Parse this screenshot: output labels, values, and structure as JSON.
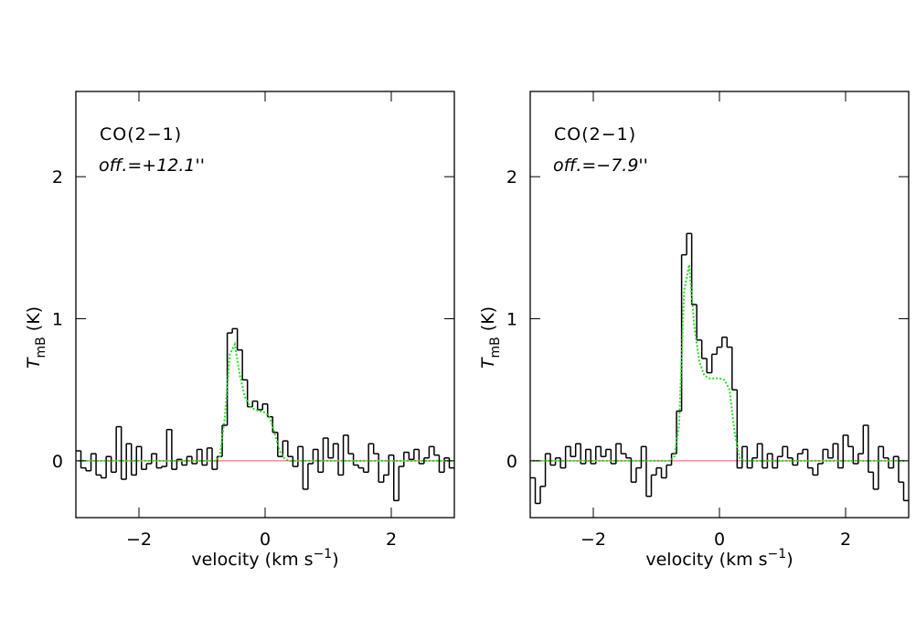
{
  "chart_data": [
    {
      "type": "step",
      "annotations": [
        "CO(2−1)",
        "off.=+12.1''"
      ],
      "xlabel": {
        "text": "velocity (km s",
        "sup": "−1",
        "close": ")"
      },
      "ylabel": {
        "symbol": "T",
        "sub": "mB",
        "unit": "(K)"
      },
      "xlim": [
        -3,
        3
      ],
      "ylim": [
        -0.4,
        2.6
      ],
      "xticks": [
        {
          "value": -2,
          "label": "−2"
        },
        0,
        2
      ],
      "yticks": [
        0,
        1,
        2
      ],
      "hline": {
        "value": 0,
        "color": "#e05a5a"
      },
      "x": [
        -2.96,
        -2.88,
        -2.8,
        -2.72,
        -2.64,
        -2.56,
        -2.48,
        -2.4,
        -2.32,
        -2.24,
        -2.16,
        -2.08,
        -2.0,
        -1.92,
        -1.84,
        -1.76,
        -1.68,
        -1.6,
        -1.52,
        -1.44,
        -1.36,
        -1.28,
        -1.2,
        -1.12,
        -1.04,
        -0.96,
        -0.88,
        -0.8,
        -0.72,
        -0.64,
        -0.56,
        -0.48,
        -0.4,
        -0.32,
        -0.24,
        -0.16,
        -0.08,
        0.0,
        0.08,
        0.16,
        0.24,
        0.32,
        0.4,
        0.48,
        0.56,
        0.64,
        0.72,
        0.8,
        0.88,
        0.96,
        1.04,
        1.12,
        1.2,
        1.28,
        1.36,
        1.44,
        1.52,
        1.6,
        1.68,
        1.76,
        1.84,
        1.92,
        2.0,
        2.08,
        2.16,
        2.24,
        2.32,
        2.4,
        2.48,
        2.56,
        2.64,
        2.72,
        2.8,
        2.88,
        2.96
      ],
      "series": [
        {
          "color": "#000000",
          "drawstyle": "steps-mid",
          "values": [
            0.07,
            -0.05,
            -0.07,
            0.05,
            -0.1,
            -0.12,
            0.03,
            -0.08,
            0.24,
            -0.13,
            0.12,
            -0.1,
            0.1,
            -0.06,
            -0.02,
            0.05,
            -0.05,
            -0.04,
            0.22,
            -0.06,
            0.01,
            -0.03,
            0.03,
            -0.02,
            0.08,
            -0.03,
            0.09,
            -0.06,
            0.03,
            0.25,
            0.9,
            0.93,
            0.78,
            0.57,
            0.38,
            0.42,
            0.36,
            0.4,
            0.31,
            0.2,
            0.03,
            0.14,
            0.03,
            -0.04,
            0.1,
            -0.2,
            -0.02,
            0.08,
            -0.08,
            0.16,
            0.02,
            0.12,
            -0.1,
            0.18,
            0.05,
            -0.03,
            -0.05,
            -0.08,
            0.12,
            0.05,
            -0.15,
            -0.1,
            0.04,
            -0.28,
            -0.04,
            0.06,
            0.01,
            0.08,
            -0.02,
            0.02,
            0.1,
            0.04,
            -0.08,
            0.02,
            -0.05
          ]
        },
        {
          "color": "#22dd22",
          "linestyle": "dotted",
          "values": [
            0,
            0,
            0,
            0,
            0,
            0,
            0,
            0,
            0,
            0,
            0,
            0,
            0,
            0,
            0,
            0,
            0,
            0,
            0,
            0,
            0,
            0,
            0,
            0,
            0,
            0,
            0,
            0,
            0.02,
            0.3,
            0.75,
            0.82,
            0.6,
            0.45,
            0.38,
            0.36,
            0.35,
            0.34,
            0.3,
            0.18,
            0.06,
            0.01,
            0,
            0,
            0,
            0,
            0,
            0,
            0,
            0,
            0,
            0,
            0,
            0,
            0,
            0,
            0,
            0,
            0,
            0,
            0,
            0,
            0,
            0,
            0,
            0,
            0,
            0,
            0,
            0,
            0,
            0,
            0,
            0,
            0
          ]
        }
      ]
    },
    {
      "type": "step",
      "annotations": [
        "CO(2−1)",
        "off.=−7.9''"
      ],
      "xlabel": {
        "text": "velocity (km s",
        "sup": "−1",
        "close": ")"
      },
      "ylabel": {
        "symbol": "T",
        "sub": "mB",
        "unit": "(K)"
      },
      "xlim": [
        -3,
        3
      ],
      "ylim": [
        -0.4,
        2.6
      ],
      "xticks": [
        {
          "value": -2,
          "label": "−2"
        },
        0,
        2
      ],
      "yticks": [
        0,
        1,
        2
      ],
      "hline": {
        "value": 0,
        "color": "#e05a5a"
      },
      "x": [
        -2.96,
        -2.88,
        -2.8,
        -2.72,
        -2.64,
        -2.56,
        -2.48,
        -2.4,
        -2.32,
        -2.24,
        -2.16,
        -2.08,
        -2.0,
        -1.92,
        -1.84,
        -1.76,
        -1.68,
        -1.6,
        -1.52,
        -1.44,
        -1.36,
        -1.28,
        -1.2,
        -1.12,
        -1.04,
        -0.96,
        -0.88,
        -0.8,
        -0.72,
        -0.64,
        -0.56,
        -0.48,
        -0.4,
        -0.32,
        -0.24,
        -0.16,
        -0.08,
        0.0,
        0.08,
        0.16,
        0.24,
        0.32,
        0.4,
        0.48,
        0.56,
        0.64,
        0.72,
        0.8,
        0.88,
        0.96,
        1.04,
        1.12,
        1.2,
        1.28,
        1.36,
        1.44,
        1.52,
        1.6,
        1.68,
        1.76,
        1.84,
        1.92,
        2.0,
        2.08,
        2.16,
        2.24,
        2.32,
        2.4,
        2.48,
        2.56,
        2.64,
        2.72,
        2.8,
        2.88,
        2.96
      ],
      "series": [
        {
          "color": "#000000",
          "drawstyle": "steps-mid",
          "values": [
            -0.12,
            -0.3,
            -0.18,
            0.05,
            -0.03,
            0.02,
            -0.05,
            0.1,
            0.03,
            0.12,
            -0.02,
            0.08,
            -0.02,
            0.1,
            0.03,
            0.08,
            -0.02,
            0.12,
            0.05,
            0.02,
            -0.15,
            -0.05,
            0.1,
            -0.25,
            -0.1,
            -0.05,
            -0.12,
            -0.03,
            0.05,
            0.35,
            1.45,
            1.6,
            1.1,
            0.85,
            0.72,
            0.62,
            0.75,
            0.8,
            0.87,
            0.8,
            0.5,
            -0.05,
            0.1,
            -0.05,
            0.02,
            0.12,
            -0.05,
            0.05,
            -0.05,
            0.03,
            0.1,
            0.02,
            -0.03,
            0.05,
            0.08,
            -0.05,
            -0.1,
            -0.02,
            0.08,
            0.02,
            0.12,
            -0.05,
            0.18,
            0.1,
            -0.02,
            0.05,
            0.25,
            -0.08,
            -0.2,
            0.1,
            0.02,
            -0.05,
            0.03,
            -0.15,
            -0.28
          ]
        },
        {
          "color": "#22dd22",
          "linestyle": "dotted",
          "values": [
            0,
            0,
            0,
            0,
            0,
            0,
            0,
            0,
            0,
            0,
            0,
            0,
            0,
            0,
            0,
            0,
            0,
            0,
            0,
            0,
            0,
            0,
            0,
            0,
            0,
            0,
            0,
            0,
            0.02,
            0.25,
            1.2,
            1.38,
            0.95,
            0.7,
            0.6,
            0.58,
            0.58,
            0.58,
            0.57,
            0.5,
            0.2,
            0.02,
            0,
            0,
            0,
            0,
            0,
            0,
            0,
            0,
            0,
            0,
            0,
            0,
            0,
            0,
            0,
            0,
            0,
            0,
            0,
            0,
            0,
            0,
            0,
            0,
            0,
            0,
            0,
            0,
            0,
            0,
            0,
            0,
            0
          ]
        }
      ]
    }
  ]
}
